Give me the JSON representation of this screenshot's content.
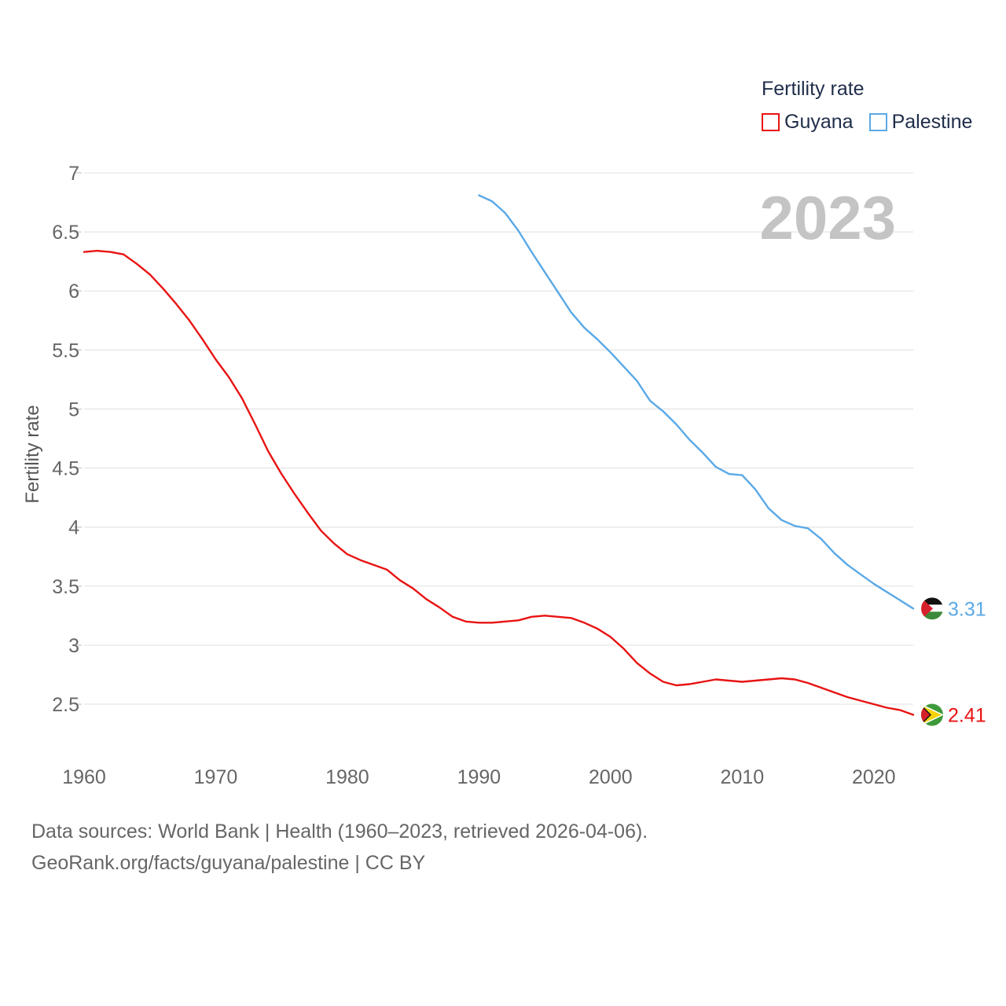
{
  "legend": {
    "title": "Fertility rate",
    "items": [
      {
        "name": "Guyana",
        "color": "#e81313"
      },
      {
        "name": "Palestine",
        "color": "#5aa9e6"
      }
    ]
  },
  "year_label": "2023",
  "footer": {
    "line1": "Data sources: World Bank | Health (1960–2023, retrieved 2026-04-06).",
    "line2": "GeoRank.org/facts/guyana/palestine | CC BY"
  },
  "chart_data": {
    "type": "line",
    "title": "",
    "xlabel": "",
    "ylabel": "Fertility rate",
    "xlim": [
      1960,
      2023
    ],
    "ylim": [
      2.1,
      7
    ],
    "xticks": [
      1960,
      1970,
      1980,
      1990,
      2000,
      2010,
      2020
    ],
    "xtick_labels": [
      "1960",
      "1970",
      "1980",
      "1990",
      "2000",
      "2010",
      "2020"
    ],
    "yticks": [
      2.5,
      3,
      3.5,
      4,
      4.5,
      5,
      5.5,
      6,
      6.5,
      7
    ],
    "ytick_labels": [
      "2.5",
      "3",
      "3.5",
      "4",
      "4.5",
      "5",
      "5.5",
      "6",
      "6.5",
      "7"
    ],
    "grid": true,
    "legend_position": "top-right",
    "series": [
      {
        "name": "Guyana",
        "color": "#e81313",
        "end_label": "2.41",
        "x": [
          1960,
          1961,
          1962,
          1963,
          1964,
          1965,
          1966,
          1967,
          1968,
          1969,
          1970,
          1971,
          1972,
          1973,
          1974,
          1975,
          1976,
          1977,
          1978,
          1979,
          1980,
          1981,
          1982,
          1983,
          1984,
          1985,
          1986,
          1987,
          1988,
          1989,
          1990,
          1991,
          1992,
          1993,
          1994,
          1995,
          1996,
          1997,
          1998,
          1999,
          2000,
          2001,
          2002,
          2003,
          2004,
          2005,
          2006,
          2007,
          2008,
          2009,
          2010,
          2011,
          2012,
          2013,
          2014,
          2015,
          2016,
          2017,
          2018,
          2019,
          2020,
          2021,
          2022,
          2023
        ],
        "values": [
          6.33,
          6.34,
          6.33,
          6.31,
          6.23,
          6.14,
          6.02,
          5.89,
          5.75,
          5.59,
          5.42,
          5.27,
          5.09,
          4.87,
          4.64,
          4.45,
          4.28,
          4.12,
          3.97,
          3.86,
          3.77,
          3.72,
          3.68,
          3.64,
          3.55,
          3.48,
          3.39,
          3.32,
          3.24,
          3.2,
          3.19,
          3.19,
          3.2,
          3.21,
          3.24,
          3.25,
          3.24,
          3.23,
          3.19,
          3.14,
          3.07,
          2.97,
          2.85,
          2.76,
          2.69,
          2.66,
          2.67,
          2.69,
          2.71,
          2.7,
          2.69,
          2.7,
          2.71,
          2.72,
          2.71,
          2.68,
          2.64,
          2.6,
          2.56,
          2.53,
          2.5,
          2.47,
          2.45,
          2.41
        ]
      },
      {
        "name": "Palestine",
        "color": "#5aa9e6",
        "end_label": "3.31",
        "x": [
          1990,
          1991,
          1992,
          1993,
          1994,
          1995,
          1996,
          1997,
          1998,
          1999,
          2000,
          2001,
          2002,
          2003,
          2004,
          2005,
          2006,
          2007,
          2008,
          2009,
          2010,
          2011,
          2012,
          2013,
          2014,
          2015,
          2016,
          2017,
          2018,
          2019,
          2020,
          2021,
          2022,
          2023
        ],
        "values": [
          6.81,
          6.76,
          6.66,
          6.51,
          6.33,
          6.16,
          5.99,
          5.82,
          5.69,
          5.59,
          5.48,
          5.36,
          5.24,
          5.07,
          4.98,
          4.87,
          4.74,
          4.63,
          4.51,
          4.45,
          4.44,
          4.32,
          4.16,
          4.06,
          4.01,
          3.99,
          3.9,
          3.78,
          3.68,
          3.6,
          3.52,
          3.45,
          3.38,
          3.31
        ]
      }
    ]
  }
}
